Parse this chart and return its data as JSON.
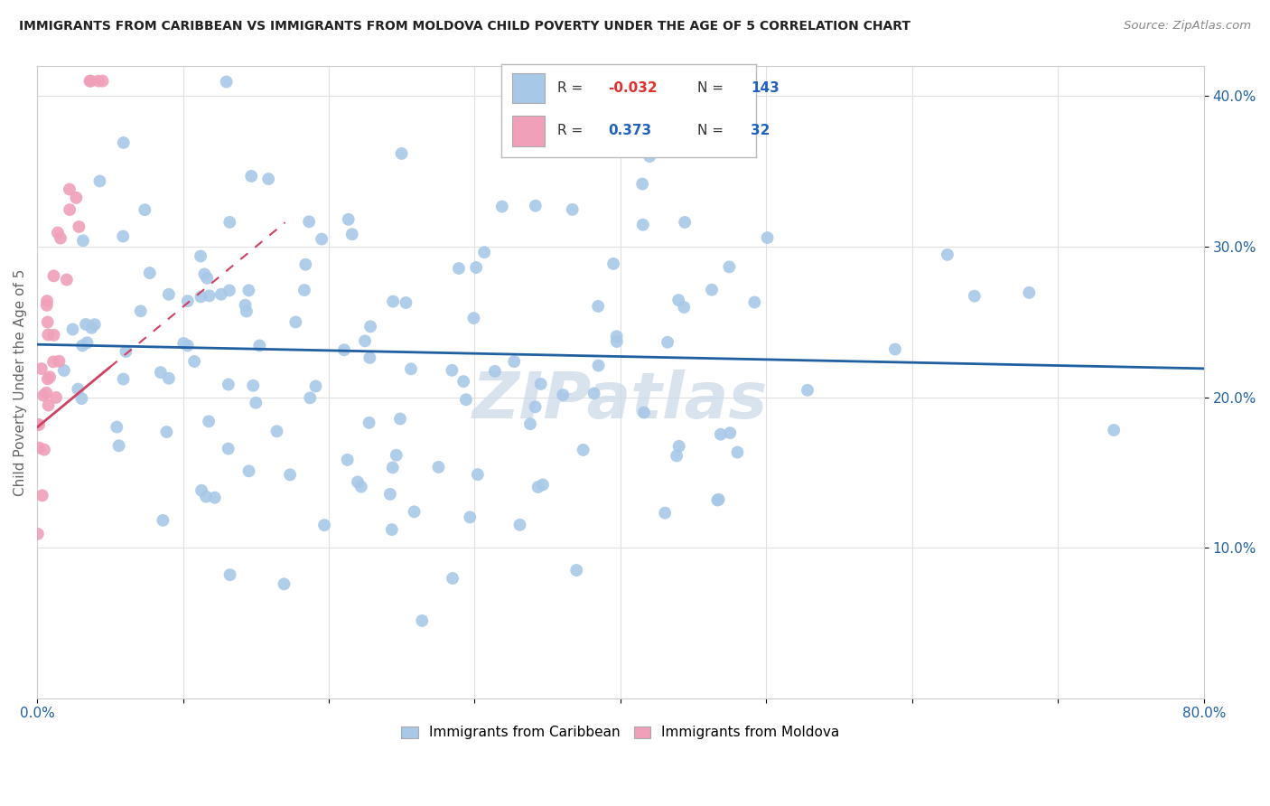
{
  "title": "IMMIGRANTS FROM CARIBBEAN VS IMMIGRANTS FROM MOLDOVA CHILD POVERTY UNDER THE AGE OF 5 CORRELATION CHART",
  "source": "Source: ZipAtlas.com",
  "ylabel": "Child Poverty Under the Age of 5",
  "caribbean_color": "#a8c8e8",
  "moldova_color": "#f0a0b8",
  "trend_caribbean_color": "#2060a0",
  "trend_moldova_color": "#d04060",
  "background_color": "#ffffff",
  "grid_color": "#e0e0e0",
  "legend_R_neg_color": "#e03030",
  "legend_R_pos_color": "#2060c0",
  "legend_N_color": "#2060c0",
  "watermark_color": "#c8d8e8",
  "xlim": [
    0.0,
    0.8
  ],
  "ylim": [
    0.0,
    0.42
  ],
  "yticks": [
    0.1,
    0.2,
    0.3,
    0.4
  ],
  "ytick_labels": [
    "10.0%",
    "20.0%",
    "30.0%",
    "40.0%"
  ],
  "xtick_left_label": "0.0%",
  "xtick_right_label": "80.0%",
  "legend_caribbean_R": "-0.032",
  "legend_caribbean_N": "143",
  "legend_moldova_R": "0.373",
  "legend_moldova_N": "32",
  "legend_label_caribbean": "Immigrants from Caribbean",
  "legend_label_moldova": "Immigrants from Moldova"
}
